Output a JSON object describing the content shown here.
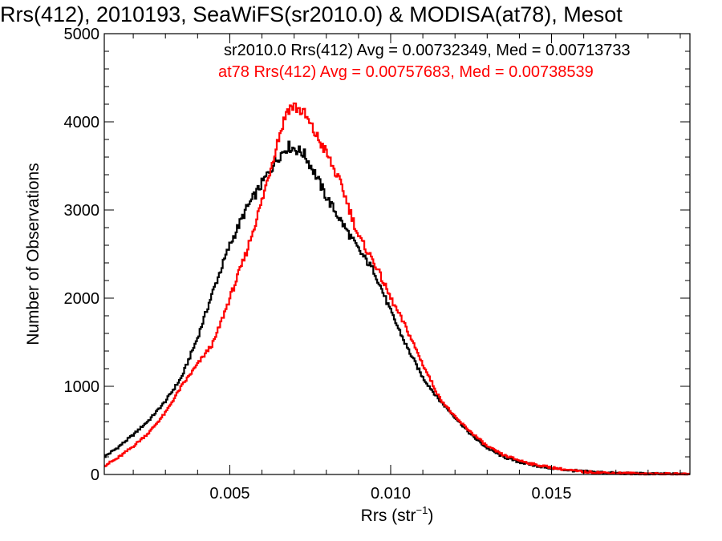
{
  "chart_data": {
    "type": "line",
    "title": "Rrs(412), 2010193, SeaWiFS(sr2010.0) & MODISA(at78), Mesot",
    "xlabel": "Rrs (str",
    "xlabel_superscript": "−1",
    "xlabel_close": ")",
    "ylabel": "Number of Observations",
    "xlim": [
      0.0011,
      0.0193
    ],
    "ylim": [
      0,
      5000
    ],
    "x_ticks": [
      {
        "value": 0.005,
        "label": "0.005"
      },
      {
        "value": 0.01,
        "label": "0.010"
      },
      {
        "value": 0.015,
        "label": "0.015"
      }
    ],
    "y_ticks": [
      {
        "value": 0,
        "label": "0"
      },
      {
        "value": 1000,
        "label": "1000"
      },
      {
        "value": 2000,
        "label": "2000"
      },
      {
        "value": 3000,
        "label": "3000"
      },
      {
        "value": 4000,
        "label": "4000"
      },
      {
        "value": 5000,
        "label": "5000"
      }
    ],
    "grid": false,
    "legend_placement": "top-right",
    "series": [
      {
        "label": "sr2010.0 Rrs(412) Avg = 0.00732349, Med = 0.00713733",
        "color": "#000000",
        "step": "histogram",
        "x": [
          0.0011,
          0.0015,
          0.002,
          0.0025,
          0.003,
          0.0035,
          0.004,
          0.0045,
          0.005,
          0.0055,
          0.006,
          0.0065,
          0.0068,
          0.007,
          0.0073,
          0.0076,
          0.008,
          0.0085,
          0.009,
          0.0095,
          0.01,
          0.0105,
          0.011,
          0.0115,
          0.012,
          0.0125,
          0.013,
          0.0135,
          0.014,
          0.0145,
          0.015,
          0.0155,
          0.016,
          0.017,
          0.018,
          0.019
        ],
        "y": [
          200,
          300,
          450,
          620,
          830,
          1100,
          1550,
          2100,
          2600,
          3000,
          3300,
          3600,
          3720,
          3700,
          3640,
          3450,
          3150,
          2850,
          2550,
          2300,
          1850,
          1450,
          1100,
          850,
          650,
          450,
          300,
          200,
          140,
          100,
          70,
          50,
          35,
          15,
          8,
          4
        ]
      },
      {
        "label": "at78 Rrs(412) Avg = 0.00757683, Med = 0.00738539",
        "color": "#ff0000",
        "step": "histogram",
        "x": [
          0.0011,
          0.0015,
          0.002,
          0.0025,
          0.003,
          0.0035,
          0.004,
          0.0045,
          0.005,
          0.0055,
          0.006,
          0.0065,
          0.0068,
          0.007,
          0.0073,
          0.0076,
          0.008,
          0.0085,
          0.009,
          0.0095,
          0.01,
          0.0105,
          0.011,
          0.0115,
          0.012,
          0.0125,
          0.013,
          0.0135,
          0.014,
          0.0145,
          0.015,
          0.0155,
          0.016,
          0.017,
          0.018,
          0.019
        ],
        "y": [
          100,
          180,
          320,
          480,
          700,
          1000,
          1250,
          1500,
          2000,
          2500,
          3100,
          3800,
          4150,
          4180,
          4100,
          3900,
          3650,
          3250,
          2700,
          2400,
          2000,
          1650,
          1250,
          880,
          650,
          480,
          320,
          220,
          160,
          110,
          80,
          50,
          30,
          15,
          8,
          3
        ]
      }
    ]
  }
}
